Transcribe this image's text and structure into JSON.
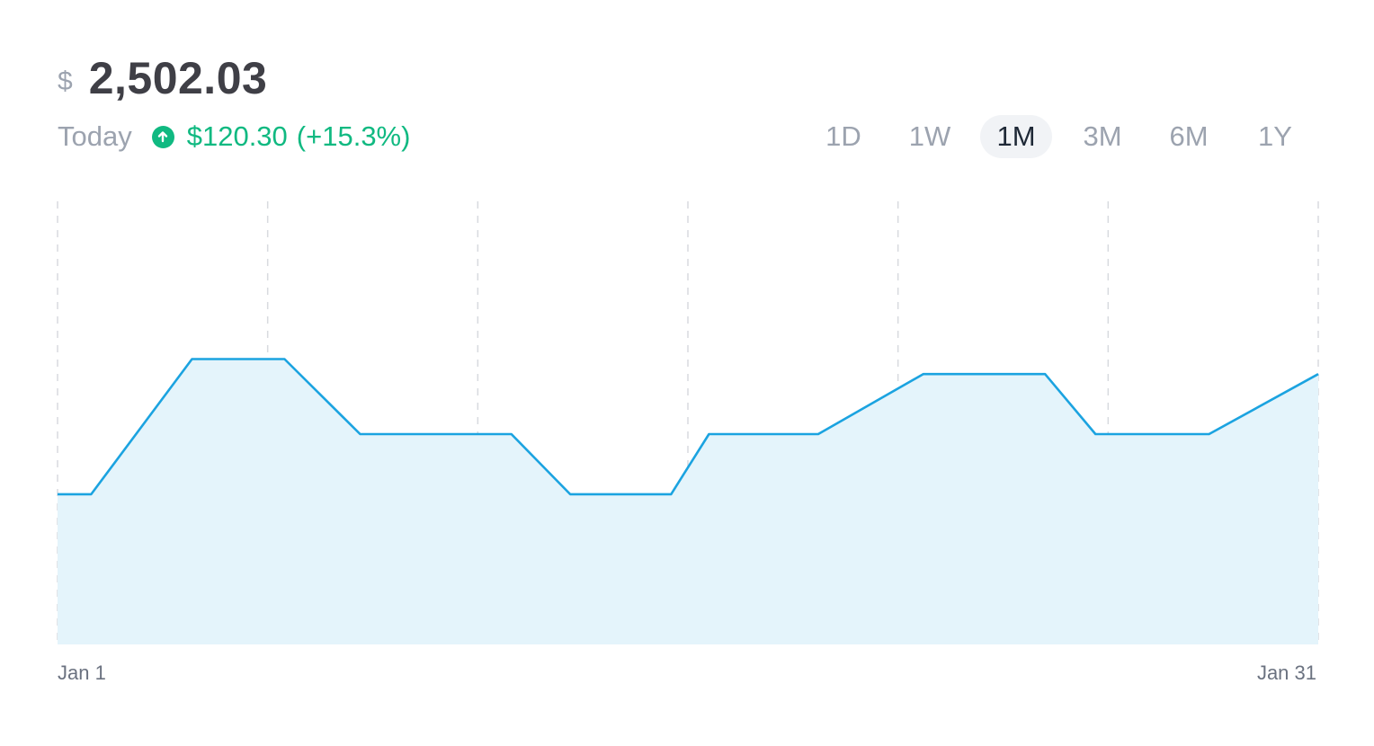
{
  "header": {
    "currency_symbol": "$",
    "price": "2,502.03",
    "today_label": "Today",
    "change_amount": "$120.30",
    "change_percent": "(+15.3%)",
    "change_icon": "arrow-up-circle-icon"
  },
  "ranges": [
    {
      "label": "1D",
      "active": false
    },
    {
      "label": "1W",
      "active": false
    },
    {
      "label": "1M",
      "active": true
    },
    {
      "label": "3M",
      "active": false
    },
    {
      "label": "6M",
      "active": false
    },
    {
      "label": "1Y",
      "active": false
    }
  ],
  "colors": {
    "line": "#1ba3e0",
    "area": "#e4f4fb",
    "grid": "#d8dadf",
    "positive": "#10b981"
  },
  "chart_data": {
    "type": "area",
    "x_labels": [
      "Jan 1",
      "Jan 31"
    ],
    "x": [
      1,
      1.8,
      4.2,
      6.4,
      8.2,
      11.8,
      13.2,
      15.6,
      16.5,
      19.1,
      21.6,
      24.5,
      25.7,
      28.4,
      31
    ],
    "y": [
      2280,
      2280,
      2460,
      2460,
      2360,
      2360,
      2280,
      2280,
      2360,
      2360,
      2440,
      2440,
      2360,
      2360,
      2440
    ],
    "xlim": [
      1,
      31
    ],
    "ylim": [
      2080,
      2670
    ],
    "grid_x": [
      1,
      6,
      11,
      16,
      21,
      26,
      31
    ],
    "grid": "vertical dashed",
    "legend": "none"
  }
}
